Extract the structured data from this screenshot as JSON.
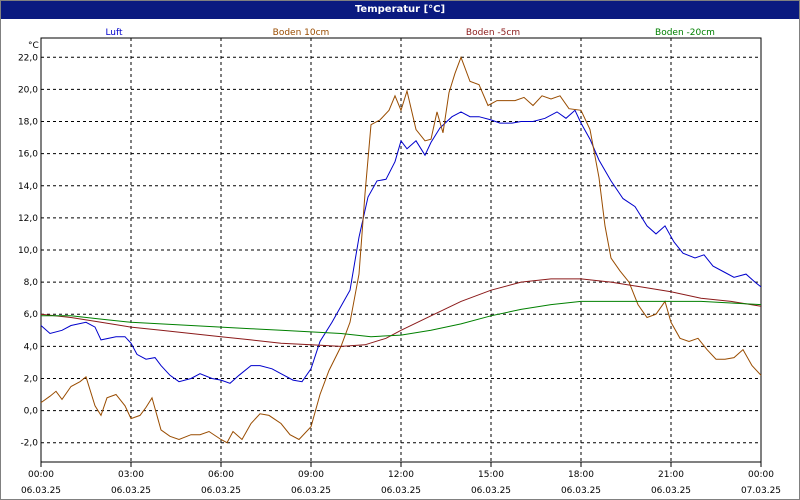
{
  "title": "Temperatur [°C]",
  "chart_data": {
    "type": "line",
    "title": "Temperatur [°C]",
    "ylabel": "°C",
    "xlabel": "",
    "x_unit": "hours",
    "xlim": [
      0,
      24
    ],
    "ylim": [
      -3.2,
      23.2
    ],
    "grid": true,
    "legend_placement": "top",
    "y_ticks": [
      "-2,0",
      "0,0",
      "2,0",
      "4,0",
      "6,0",
      "8,0",
      "10,0",
      "12,0",
      "14,0",
      "16,0",
      "18,0",
      "20,0",
      "22,0"
    ],
    "y_tick_values": [
      -2,
      0,
      2,
      4,
      6,
      8,
      10,
      12,
      14,
      16,
      18,
      20,
      22
    ],
    "x_ticks": [
      {
        "x": 0,
        "time": "00:00",
        "date": "06.03.25"
      },
      {
        "x": 3,
        "time": "03:00",
        "date": "06.03.25"
      },
      {
        "x": 6,
        "time": "06:00",
        "date": "06.03.25"
      },
      {
        "x": 9,
        "time": "09:00",
        "date": "06.03.25"
      },
      {
        "x": 12,
        "time": "12:00",
        "date": "06.03.25"
      },
      {
        "x": 15,
        "time": "15:00",
        "date": "06.03.25"
      },
      {
        "x": 18,
        "time": "18:00",
        "date": "06.03.25"
      },
      {
        "x": 21,
        "time": "21:00",
        "date": "06.03.25"
      },
      {
        "x": 24,
        "time": "00:00",
        "date": "07.03.25"
      }
    ],
    "series": [
      {
        "name": "Luft",
        "color": "#0000cc",
        "points": [
          [
            0,
            5.3
          ],
          [
            0.3,
            4.8
          ],
          [
            0.7,
            5.0
          ],
          [
            1.0,
            5.3
          ],
          [
            1.5,
            5.5
          ],
          [
            1.8,
            5.2
          ],
          [
            2.0,
            4.4
          ],
          [
            2.5,
            4.6
          ],
          [
            2.8,
            4.6
          ],
          [
            3.0,
            4.2
          ],
          [
            3.2,
            3.5
          ],
          [
            3.5,
            3.2
          ],
          [
            3.8,
            3.3
          ],
          [
            4.0,
            2.8
          ],
          [
            4.3,
            2.2
          ],
          [
            4.6,
            1.8
          ],
          [
            5.0,
            2.0
          ],
          [
            5.3,
            2.3
          ],
          [
            5.7,
            2.0
          ],
          [
            6.0,
            1.9
          ],
          [
            6.3,
            1.7
          ],
          [
            6.6,
            2.2
          ],
          [
            7.0,
            2.8
          ],
          [
            7.3,
            2.8
          ],
          [
            7.7,
            2.6
          ],
          [
            8.0,
            2.3
          ],
          [
            8.4,
            1.9
          ],
          [
            8.7,
            1.8
          ],
          [
            9.0,
            2.6
          ],
          [
            9.3,
            4.3
          ],
          [
            9.7,
            5.5
          ],
          [
            10.0,
            6.5
          ],
          [
            10.3,
            7.5
          ],
          [
            10.6,
            10.8
          ],
          [
            10.9,
            13.3
          ],
          [
            11.2,
            14.3
          ],
          [
            11.5,
            14.4
          ],
          [
            11.8,
            15.5
          ],
          [
            12.0,
            16.8
          ],
          [
            12.2,
            16.3
          ],
          [
            12.5,
            16.8
          ],
          [
            12.8,
            15.9
          ],
          [
            13.0,
            16.7
          ],
          [
            13.3,
            17.6
          ],
          [
            13.7,
            18.3
          ],
          [
            14.0,
            18.6
          ],
          [
            14.3,
            18.3
          ],
          [
            14.6,
            18.3
          ],
          [
            15.0,
            18.1
          ],
          [
            15.3,
            17.9
          ],
          [
            15.7,
            17.9
          ],
          [
            16.0,
            18.0
          ],
          [
            16.4,
            18.0
          ],
          [
            16.8,
            18.2
          ],
          [
            17.2,
            18.6
          ],
          [
            17.5,
            18.2
          ],
          [
            17.8,
            18.7
          ],
          [
            18.0,
            17.9
          ],
          [
            18.3,
            16.9
          ],
          [
            18.6,
            15.6
          ],
          [
            19.0,
            14.3
          ],
          [
            19.4,
            13.2
          ],
          [
            19.8,
            12.7
          ],
          [
            20.2,
            11.5
          ],
          [
            20.5,
            11.0
          ],
          [
            20.8,
            11.5
          ],
          [
            21.1,
            10.5
          ],
          [
            21.4,
            9.8
          ],
          [
            21.8,
            9.5
          ],
          [
            22.1,
            9.7
          ],
          [
            22.4,
            9.0
          ],
          [
            22.8,
            8.6
          ],
          [
            23.1,
            8.3
          ],
          [
            23.5,
            8.5
          ],
          [
            23.8,
            8.0
          ],
          [
            24.0,
            7.7
          ]
        ]
      },
      {
        "name": "Boden 10cm",
        "color": "#994c00",
        "points": [
          [
            0,
            0.5
          ],
          [
            0.3,
            0.9
          ],
          [
            0.5,
            1.2
          ],
          [
            0.7,
            0.7
          ],
          [
            1.0,
            1.5
          ],
          [
            1.3,
            1.8
          ],
          [
            1.5,
            2.1
          ],
          [
            1.8,
            0.3
          ],
          [
            2.0,
            -0.3
          ],
          [
            2.2,
            0.8
          ],
          [
            2.5,
            1.0
          ],
          [
            2.8,
            0.3
          ],
          [
            3.0,
            -0.5
          ],
          [
            3.3,
            -0.3
          ],
          [
            3.5,
            0.2
          ],
          [
            3.7,
            0.8
          ],
          [
            4.0,
            -1.2
          ],
          [
            4.3,
            -1.6
          ],
          [
            4.6,
            -1.8
          ],
          [
            5.0,
            -1.5
          ],
          [
            5.3,
            -1.5
          ],
          [
            5.6,
            -1.3
          ],
          [
            6.0,
            -1.8
          ],
          [
            6.2,
            -2.0
          ],
          [
            6.4,
            -1.3
          ],
          [
            6.7,
            -1.8
          ],
          [
            7.0,
            -0.8
          ],
          [
            7.3,
            -0.2
          ],
          [
            7.6,
            -0.3
          ],
          [
            8.0,
            -0.8
          ],
          [
            8.3,
            -1.5
          ],
          [
            8.6,
            -1.8
          ],
          [
            9.0,
            -1.0
          ],
          [
            9.3,
            1.0
          ],
          [
            9.6,
            2.5
          ],
          [
            10.0,
            4.0
          ],
          [
            10.3,
            5.5
          ],
          [
            10.6,
            8.5
          ],
          [
            10.8,
            13.5
          ],
          [
            11.0,
            17.8
          ],
          [
            11.3,
            18.1
          ],
          [
            11.6,
            18.7
          ],
          [
            11.8,
            19.6
          ],
          [
            12.0,
            18.7
          ],
          [
            12.2,
            19.9
          ],
          [
            12.5,
            17.5
          ],
          [
            12.8,
            16.8
          ],
          [
            13.0,
            16.9
          ],
          [
            13.2,
            18.6
          ],
          [
            13.4,
            17.3
          ],
          [
            13.6,
            19.8
          ],
          [
            13.8,
            21.0
          ],
          [
            14.0,
            22.0
          ],
          [
            14.3,
            20.5
          ],
          [
            14.6,
            20.3
          ],
          [
            14.9,
            19.0
          ],
          [
            15.2,
            19.3
          ],
          [
            15.5,
            19.3
          ],
          [
            15.8,
            19.3
          ],
          [
            16.1,
            19.5
          ],
          [
            16.4,
            19.0
          ],
          [
            16.7,
            19.6
          ],
          [
            17.0,
            19.4
          ],
          [
            17.3,
            19.6
          ],
          [
            17.6,
            18.8
          ],
          [
            18.0,
            18.7
          ],
          [
            18.3,
            17.5
          ],
          [
            18.6,
            14.5
          ],
          [
            18.8,
            11.5
          ],
          [
            19.0,
            9.5
          ],
          [
            19.3,
            8.7
          ],
          [
            19.6,
            8.0
          ],
          [
            19.9,
            6.6
          ],
          [
            20.2,
            5.8
          ],
          [
            20.5,
            6.0
          ],
          [
            20.8,
            6.8
          ],
          [
            21.0,
            5.5
          ],
          [
            21.3,
            4.5
          ],
          [
            21.6,
            4.3
          ],
          [
            21.9,
            4.5
          ],
          [
            22.2,
            3.8
          ],
          [
            22.5,
            3.2
          ],
          [
            22.8,
            3.2
          ],
          [
            23.1,
            3.3
          ],
          [
            23.4,
            3.8
          ],
          [
            23.7,
            2.8
          ],
          [
            24.0,
            2.2
          ]
        ]
      },
      {
        "name": "Boden -5cm",
        "color": "#8b1a1a",
        "points": [
          [
            0,
            6.0
          ],
          [
            1.0,
            5.8
          ],
          [
            2.0,
            5.5
          ],
          [
            3.0,
            5.2
          ],
          [
            4.0,
            5.0
          ],
          [
            5.0,
            4.8
          ],
          [
            6.0,
            4.6
          ],
          [
            7.0,
            4.4
          ],
          [
            8.0,
            4.2
          ],
          [
            9.0,
            4.1
          ],
          [
            10.0,
            4.0
          ],
          [
            10.8,
            4.1
          ],
          [
            11.5,
            4.5
          ],
          [
            12.0,
            5.0
          ],
          [
            13.0,
            5.9
          ],
          [
            14.0,
            6.8
          ],
          [
            15.0,
            7.5
          ],
          [
            16.0,
            8.0
          ],
          [
            17.0,
            8.2
          ],
          [
            18.0,
            8.2
          ],
          [
            19.0,
            8.0
          ],
          [
            20.0,
            7.7
          ],
          [
            21.0,
            7.4
          ],
          [
            22.0,
            7.0
          ],
          [
            23.0,
            6.8
          ],
          [
            24.0,
            6.5
          ]
        ]
      },
      {
        "name": "Boden -20cm",
        "color": "#008000",
        "points": [
          [
            0,
            5.9
          ],
          [
            1.0,
            5.9
          ],
          [
            2.0,
            5.7
          ],
          [
            3.0,
            5.5
          ],
          [
            4.0,
            5.4
          ],
          [
            5.0,
            5.3
          ],
          [
            6.0,
            5.2
          ],
          [
            7.0,
            5.1
          ],
          [
            8.0,
            5.0
          ],
          [
            9.0,
            4.9
          ],
          [
            10.0,
            4.8
          ],
          [
            11.0,
            4.6
          ],
          [
            12.0,
            4.7
          ],
          [
            13.0,
            5.0
          ],
          [
            14.0,
            5.4
          ],
          [
            15.0,
            5.9
          ],
          [
            16.0,
            6.3
          ],
          [
            17.0,
            6.6
          ],
          [
            18.0,
            6.8
          ],
          [
            19.0,
            6.8
          ],
          [
            20.0,
            6.8
          ],
          [
            21.0,
            6.8
          ],
          [
            22.0,
            6.8
          ],
          [
            23.0,
            6.7
          ],
          [
            24.0,
            6.6
          ]
        ]
      }
    ]
  }
}
